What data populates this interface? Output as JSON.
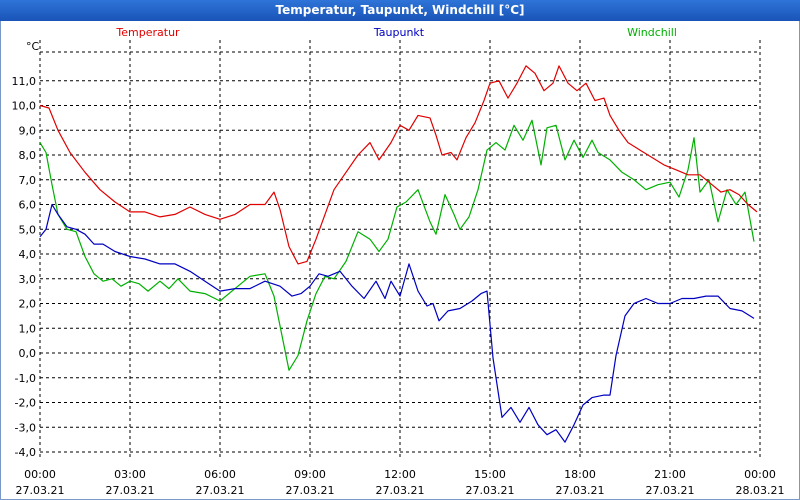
{
  "chart_data": {
    "type": "line",
    "title": "Temperatur, Taupunkt, Windchill [°C]",
    "unit_label": "°C",
    "ylim": [
      -4.0,
      12.0
    ],
    "y_ticks": [
      "11,0",
      "10,0",
      "9,0",
      "8,0",
      "7,0",
      "6,0",
      "5,0",
      "4,0",
      "3,0",
      "2,0",
      "1,0",
      "0,0",
      "-1,0",
      "-2,0",
      "-3,0",
      "-4,0"
    ],
    "y_tick_values": [
      11,
      10,
      9,
      8,
      7,
      6,
      5,
      4,
      3,
      2,
      1,
      0,
      -1,
      -2,
      -3,
      -4
    ],
    "xlim": [
      0,
      24
    ],
    "x_ticks": [
      {
        "hour": 0,
        "time": "00:00",
        "date": "27.03.21"
      },
      {
        "hour": 3,
        "time": "03:00",
        "date": "27.03.21"
      },
      {
        "hour": 6,
        "time": "06:00",
        "date": "27.03.21"
      },
      {
        "hour": 9,
        "time": "09:00",
        "date": "27.03.21"
      },
      {
        "hour": 12,
        "time": "12:00",
        "date": "27.03.21"
      },
      {
        "hour": 15,
        "time": "15:00",
        "date": "27.03.21"
      },
      {
        "hour": 18,
        "time": "18:00",
        "date": "27.03.21"
      },
      {
        "hour": 21,
        "time": "21:00",
        "date": "27.03.21"
      },
      {
        "hour": 24,
        "time": "00:00",
        "date": "28.03.21"
      }
    ],
    "grid": true,
    "series": [
      {
        "name": "Temperatur",
        "color": "#e00000",
        "points": [
          [
            0,
            10.0
          ],
          [
            0.3,
            9.9
          ],
          [
            0.6,
            9.0
          ],
          [
            1.0,
            8.1
          ],
          [
            1.5,
            7.3
          ],
          [
            2.0,
            6.6
          ],
          [
            2.5,
            6.1
          ],
          [
            3.0,
            5.7
          ],
          [
            3.5,
            5.7
          ],
          [
            4.0,
            5.5
          ],
          [
            4.5,
            5.6
          ],
          [
            5.0,
            5.9
          ],
          [
            5.5,
            5.6
          ],
          [
            6.0,
            5.4
          ],
          [
            6.5,
            5.6
          ],
          [
            7.0,
            6.0
          ],
          [
            7.5,
            6.0
          ],
          [
            7.8,
            6.5
          ],
          [
            8.0,
            5.8
          ],
          [
            8.3,
            4.3
          ],
          [
            8.6,
            3.6
          ],
          [
            8.9,
            3.7
          ],
          [
            9.2,
            4.6
          ],
          [
            9.5,
            5.6
          ],
          [
            9.8,
            6.6
          ],
          [
            10.2,
            7.3
          ],
          [
            10.6,
            8.0
          ],
          [
            11.0,
            8.5
          ],
          [
            11.3,
            7.8
          ],
          [
            11.7,
            8.5
          ],
          [
            12.0,
            9.2
          ],
          [
            12.3,
            9.0
          ],
          [
            12.6,
            9.6
          ],
          [
            13.0,
            9.5
          ],
          [
            13.2,
            8.8
          ],
          [
            13.4,
            8.0
          ],
          [
            13.7,
            8.1
          ],
          [
            13.9,
            7.8
          ],
          [
            14.2,
            8.7
          ],
          [
            14.5,
            9.3
          ],
          [
            14.8,
            10.2
          ],
          [
            15.0,
            10.9
          ],
          [
            15.3,
            11.0
          ],
          [
            15.6,
            10.3
          ],
          [
            15.9,
            10.9
          ],
          [
            16.2,
            11.6
          ],
          [
            16.5,
            11.3
          ],
          [
            16.8,
            10.6
          ],
          [
            17.1,
            10.9
          ],
          [
            17.3,
            11.6
          ],
          [
            17.6,
            10.9
          ],
          [
            17.9,
            10.6
          ],
          [
            18.2,
            10.9
          ],
          [
            18.5,
            10.2
          ],
          [
            18.8,
            10.3
          ],
          [
            19.0,
            9.6
          ],
          [
            19.3,
            9.0
          ],
          [
            19.6,
            8.5
          ],
          [
            20.0,
            8.2
          ],
          [
            20.4,
            7.9
          ],
          [
            20.8,
            7.6
          ],
          [
            21.2,
            7.4
          ],
          [
            21.6,
            7.2
          ],
          [
            22.0,
            7.2
          ],
          [
            22.4,
            6.8
          ],
          [
            22.7,
            6.5
          ],
          [
            23.0,
            6.6
          ],
          [
            23.3,
            6.4
          ],
          [
            23.6,
            6.0
          ],
          [
            23.9,
            5.7
          ]
        ]
      },
      {
        "name": "Taupunkt",
        "color": "#0000c0",
        "points": [
          [
            0,
            4.7
          ],
          [
            0.2,
            5.0
          ],
          [
            0.4,
            6.0
          ],
          [
            0.6,
            5.6
          ],
          [
            0.9,
            5.1
          ],
          [
            1.2,
            5.0
          ],
          [
            1.5,
            4.8
          ],
          [
            1.8,
            4.4
          ],
          [
            2.1,
            4.4
          ],
          [
            2.5,
            4.1
          ],
          [
            3.0,
            3.9
          ],
          [
            3.5,
            3.8
          ],
          [
            4.0,
            3.6
          ],
          [
            4.5,
            3.6
          ],
          [
            5.0,
            3.3
          ],
          [
            5.5,
            2.9
          ],
          [
            6.0,
            2.5
          ],
          [
            6.5,
            2.6
          ],
          [
            7.0,
            2.6
          ],
          [
            7.5,
            2.9
          ],
          [
            8.0,
            2.7
          ],
          [
            8.4,
            2.3
          ],
          [
            8.7,
            2.4
          ],
          [
            9.0,
            2.7
          ],
          [
            9.3,
            3.2
          ],
          [
            9.6,
            3.1
          ],
          [
            10.0,
            3.3
          ],
          [
            10.4,
            2.7
          ],
          [
            10.8,
            2.2
          ],
          [
            11.2,
            2.9
          ],
          [
            11.5,
            2.2
          ],
          [
            11.7,
            2.9
          ],
          [
            12.0,
            2.3
          ],
          [
            12.3,
            3.6
          ],
          [
            12.6,
            2.5
          ],
          [
            12.9,
            1.9
          ],
          [
            13.1,
            2.0
          ],
          [
            13.3,
            1.3
          ],
          [
            13.6,
            1.7
          ],
          [
            14.0,
            1.8
          ],
          [
            14.4,
            2.1
          ],
          [
            14.7,
            2.4
          ],
          [
            14.9,
            2.5
          ],
          [
            15.1,
            -0.2
          ],
          [
            15.4,
            -2.6
          ],
          [
            15.7,
            -2.2
          ],
          [
            16.0,
            -2.8
          ],
          [
            16.3,
            -2.2
          ],
          [
            16.6,
            -2.9
          ],
          [
            16.9,
            -3.3
          ],
          [
            17.2,
            -3.1
          ],
          [
            17.5,
            -3.6
          ],
          [
            17.8,
            -2.9
          ],
          [
            18.1,
            -2.1
          ],
          [
            18.4,
            -1.8
          ],
          [
            18.8,
            -1.7
          ],
          [
            19.0,
            -1.7
          ],
          [
            19.2,
            -0.1
          ],
          [
            19.5,
            1.5
          ],
          [
            19.8,
            2.0
          ],
          [
            20.2,
            2.2
          ],
          [
            20.6,
            2.0
          ],
          [
            21.0,
            2.0
          ],
          [
            21.4,
            2.2
          ],
          [
            21.8,
            2.2
          ],
          [
            22.2,
            2.3
          ],
          [
            22.6,
            2.3
          ],
          [
            23.0,
            1.8
          ],
          [
            23.4,
            1.7
          ],
          [
            23.8,
            1.4
          ]
        ]
      },
      {
        "name": "Windchill",
        "color": "#00b000",
        "points": [
          [
            0,
            8.5
          ],
          [
            0.2,
            8.1
          ],
          [
            0.4,
            6.8
          ],
          [
            0.6,
            5.6
          ],
          [
            0.9,
            5.0
          ],
          [
            1.2,
            4.9
          ],
          [
            1.5,
            3.9
          ],
          [
            1.8,
            3.2
          ],
          [
            2.1,
            2.9
          ],
          [
            2.4,
            3.0
          ],
          [
            2.7,
            2.7
          ],
          [
            3.0,
            2.9
          ],
          [
            3.3,
            2.8
          ],
          [
            3.6,
            2.5
          ],
          [
            4.0,
            2.9
          ],
          [
            4.3,
            2.6
          ],
          [
            4.6,
            3.0
          ],
          [
            5.0,
            2.5
          ],
          [
            5.5,
            2.4
          ],
          [
            6.0,
            2.1
          ],
          [
            6.5,
            2.6
          ],
          [
            7.0,
            3.1
          ],
          [
            7.5,
            3.2
          ],
          [
            7.8,
            2.3
          ],
          [
            8.1,
            0.5
          ],
          [
            8.3,
            -0.7
          ],
          [
            8.6,
            -0.1
          ],
          [
            8.9,
            1.3
          ],
          [
            9.2,
            2.4
          ],
          [
            9.5,
            3.1
          ],
          [
            9.8,
            3.0
          ],
          [
            10.2,
            3.7
          ],
          [
            10.6,
            4.9
          ],
          [
            11.0,
            4.6
          ],
          [
            11.3,
            4.1
          ],
          [
            11.6,
            4.6
          ],
          [
            11.9,
            5.9
          ],
          [
            12.2,
            6.1
          ],
          [
            12.6,
            6.6
          ],
          [
            13.0,
            5.3
          ],
          [
            13.2,
            4.8
          ],
          [
            13.5,
            6.4
          ],
          [
            13.8,
            5.6
          ],
          [
            14.0,
            5.0
          ],
          [
            14.3,
            5.5
          ],
          [
            14.6,
            6.6
          ],
          [
            14.9,
            8.2
          ],
          [
            15.2,
            8.5
          ],
          [
            15.5,
            8.2
          ],
          [
            15.8,
            9.2
          ],
          [
            16.1,
            8.6
          ],
          [
            16.4,
            9.4
          ],
          [
            16.7,
            7.6
          ],
          [
            16.9,
            9.1
          ],
          [
            17.2,
            9.2
          ],
          [
            17.5,
            7.8
          ],
          [
            17.8,
            8.6
          ],
          [
            18.1,
            7.9
          ],
          [
            18.4,
            8.6
          ],
          [
            18.6,
            8.1
          ],
          [
            19.0,
            7.8
          ],
          [
            19.4,
            7.3
          ],
          [
            19.8,
            7.0
          ],
          [
            20.2,
            6.6
          ],
          [
            20.6,
            6.8
          ],
          [
            21.0,
            6.9
          ],
          [
            21.3,
            6.3
          ],
          [
            21.6,
            7.4
          ],
          [
            21.8,
            8.7
          ],
          [
            22.0,
            6.5
          ],
          [
            22.3,
            7.0
          ],
          [
            22.6,
            5.3
          ],
          [
            22.9,
            6.6
          ],
          [
            23.2,
            6.0
          ],
          [
            23.5,
            6.5
          ],
          [
            23.8,
            4.5
          ]
        ]
      }
    ]
  }
}
